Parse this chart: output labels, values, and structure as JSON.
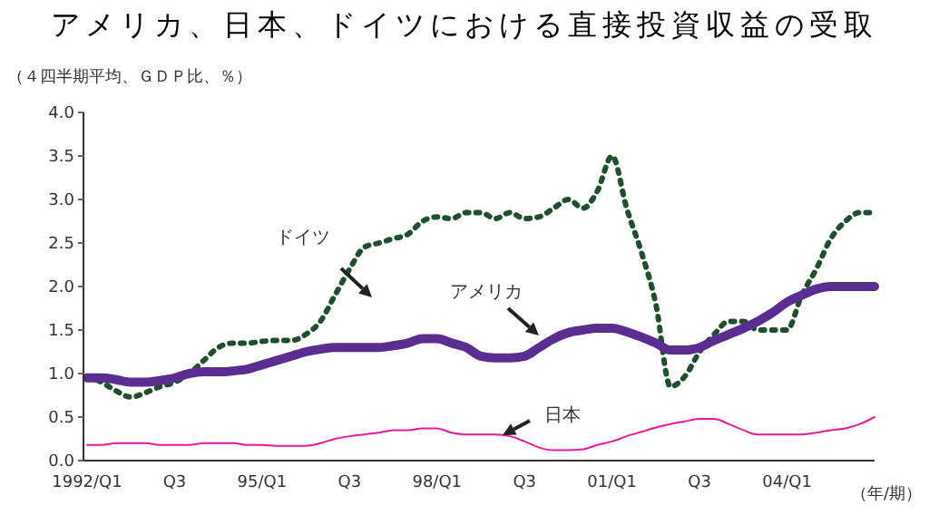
{
  "chart_data": {
    "type": "line",
    "title": "アメリカ、日本、ドイツにおける直接投資収益の受取",
    "subtitle": "（４四半期平均、ＧＤＰ比、％）",
    "xlabel": "（年/期）",
    "categories": [
      "1992/Q1",
      null,
      null,
      null,
      null,
      null,
      "Q3",
      null,
      null,
      null,
      null,
      null,
      "95/Q1",
      null,
      null,
      null,
      null,
      null,
      "Q3",
      null,
      null,
      null,
      null,
      null,
      "98/Q1",
      null,
      null,
      null,
      null,
      null,
      "Q3",
      null,
      null,
      null,
      null,
      null,
      "01/Q1",
      null,
      null,
      null,
      null,
      null,
      "Q3",
      null,
      null,
      null,
      null,
      null,
      "04/Q1",
      null,
      null,
      null,
      null,
      null,
      null
    ],
    "series": [
      {
        "name": "ドイツ",
        "color": "#1f4f2f",
        "line_style": "dotted",
        "values": [
          0.97,
          0.9,
          0.8,
          0.73,
          0.78,
          0.85,
          0.9,
          1.0,
          1.15,
          1.3,
          1.35,
          1.35,
          1.37,
          1.38,
          1.38,
          1.45,
          1.6,
          1.9,
          2.2,
          2.45,
          2.5,
          2.55,
          2.6,
          2.75,
          2.8,
          2.78,
          2.85,
          2.85,
          2.78,
          2.85,
          2.78,
          2.8,
          2.9,
          3.0,
          2.9,
          3.1,
          3.5,
          2.9,
          2.4,
          1.8,
          0.85,
          0.97,
          1.25,
          1.45,
          1.6,
          1.6,
          1.5,
          1.5,
          1.5,
          1.9,
          2.2,
          2.55,
          2.75,
          2.85,
          2.85
        ]
      },
      {
        "name": "アメリカ",
        "color": "#5a2d91",
        "line_style": "solid",
        "values": [
          0.95,
          0.95,
          0.93,
          0.9,
          0.9,
          0.92,
          0.95,
          1.0,
          1.02,
          1.02,
          1.03,
          1.05,
          1.1,
          1.15,
          1.2,
          1.25,
          1.28,
          1.3,
          1.3,
          1.3,
          1.3,
          1.32,
          1.35,
          1.4,
          1.4,
          1.35,
          1.3,
          1.2,
          1.18,
          1.18,
          1.2,
          1.3,
          1.4,
          1.47,
          1.5,
          1.52,
          1.52,
          1.48,
          1.42,
          1.35,
          1.27,
          1.27,
          1.3,
          1.38,
          1.45,
          1.52,
          1.6,
          1.7,
          1.82,
          1.9,
          1.97,
          2.0,
          2.0,
          2.0,
          2.0
        ]
      },
      {
        "name": "日本",
        "color": "#e6199a",
        "line_style": "solid",
        "values": [
          0.18,
          0.18,
          0.2,
          0.2,
          0.2,
          0.18,
          0.18,
          0.18,
          0.2,
          0.2,
          0.2,
          0.18,
          0.18,
          0.17,
          0.17,
          0.17,
          0.2,
          0.25,
          0.28,
          0.3,
          0.32,
          0.35,
          0.35,
          0.37,
          0.37,
          0.32,
          0.3,
          0.3,
          0.3,
          0.28,
          0.22,
          0.15,
          0.12,
          0.12,
          0.13,
          0.18,
          0.22,
          0.28,
          0.33,
          0.38,
          0.42,
          0.45,
          0.48,
          0.48,
          0.42,
          0.35,
          0.3,
          0.3,
          0.3,
          0.3,
          0.32,
          0.35,
          0.37,
          0.42,
          0.5
        ]
      }
    ],
    "ylim": [
      0,
      4
    ],
    "yticks": [
      {
        "value": 0,
        "label": "0.0"
      },
      {
        "value": 0.5,
        "label": "0.5"
      },
      {
        "value": 1,
        "label": "1.0"
      },
      {
        "value": 1.5,
        "label": "1.5"
      },
      {
        "value": 2,
        "label": "2.0"
      },
      {
        "value": 2.5,
        "label": "2.5"
      },
      {
        "value": 3,
        "label": "3.0"
      },
      {
        "value": 3.5,
        "label": "3.5"
      },
      {
        "value": 4,
        "label": "4.0"
      }
    ],
    "grid": false,
    "legend": false,
    "marker": "none"
  }
}
